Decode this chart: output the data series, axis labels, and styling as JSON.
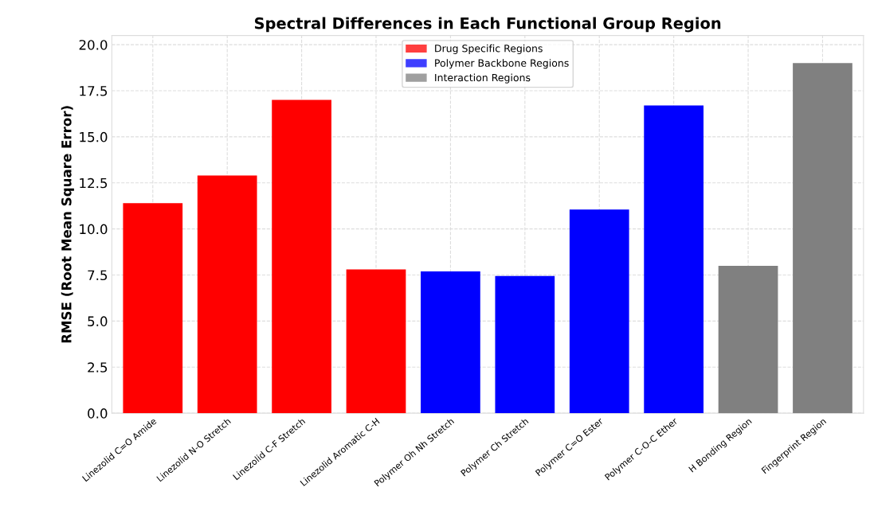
{
  "chart_data": {
    "type": "bar",
    "title": "Spectral Differences in Each Functional Group Region",
    "ylabel": "RMSE (Root Mean Square Error)",
    "categories": [
      "Linezolid C=O Amide",
      "Linezolid N-O Stretch",
      "Linezolid C-F Stretch",
      "Linezolid Aromatic C-H",
      "Polymer Oh Nh Stretch",
      "Polymer Ch Stretch",
      "Polymer C=O Ester",
      "Polymer C-O-C Ether",
      "H Bonding Region",
      "Fingerprint Region"
    ],
    "series": [
      {
        "name": "Drug Specific Regions",
        "color": "#ff0000",
        "values": [
          11.4,
          12.9,
          17.0,
          7.8,
          null,
          null,
          null,
          null,
          null,
          null
        ]
      },
      {
        "name": "Polymer Backbone Regions",
        "color": "#0000ff",
        "values": [
          null,
          null,
          null,
          null,
          7.7,
          7.45,
          11.05,
          16.7,
          null,
          null
        ]
      },
      {
        "name": "Interaction Regions",
        "color": "#808080",
        "values": [
          null,
          null,
          null,
          null,
          null,
          null,
          null,
          null,
          8.0,
          19.0
        ]
      }
    ],
    "ylim": [
      0,
      20.5
    ],
    "yticks": [
      {
        "value": 0,
        "label": "0.0"
      },
      2.5,
      {
        "value": 5,
        "label": "5.0"
      },
      7.5,
      {
        "value": 10,
        "label": "10.0"
      },
      12.5,
      {
        "value": 15,
        "label": "15.0"
      },
      17.5,
      {
        "value": 20,
        "label": "20.0"
      }
    ],
    "grid": true,
    "legend": "top"
  }
}
